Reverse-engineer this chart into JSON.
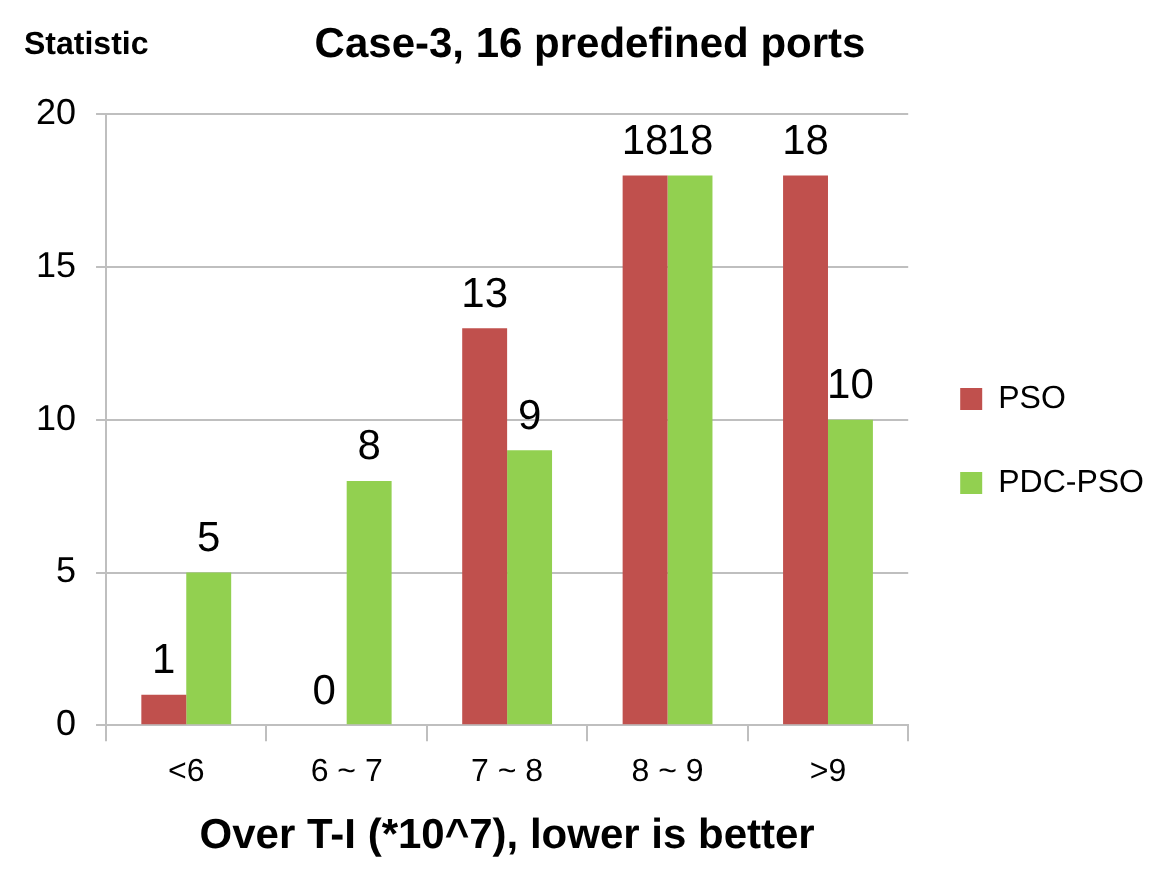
{
  "chart_data": {
    "type": "bar",
    "title": "Case-3, 16 predefined ports",
    "xlabel": "Over T-I (*10^7), lower is better",
    "ylabel": "Statistic",
    "categories": [
      "<6",
      "6 ~ 7",
      "7 ~ 8",
      "8 ~ 9",
      ">9"
    ],
    "series": [
      {
        "name": "PSO",
        "color": "#c0504d",
        "values": [
          1,
          0,
          13,
          18,
          18
        ]
      },
      {
        "name": "PDC-PSO",
        "color": "#92d050",
        "values": [
          5,
          8,
          9,
          18,
          10
        ]
      }
    ],
    "ylim": [
      0,
      20
    ],
    "yticks": [
      0,
      5,
      10,
      15,
      20
    ],
    "grid": "y",
    "legend": "right",
    "data_labels": true
  }
}
